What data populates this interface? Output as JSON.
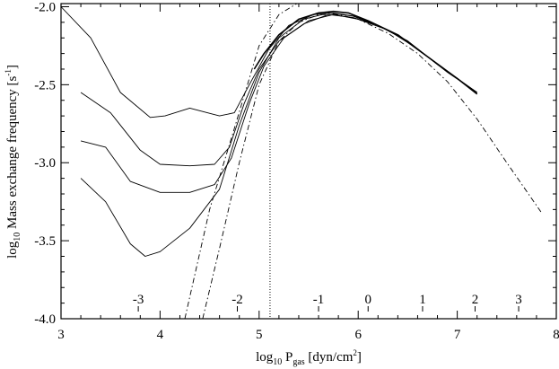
{
  "chart_data": {
    "type": "line",
    "xlabel": "log10 Pgas [dyn/cm2]",
    "ylabel": "log10 Mass exchange frequency [s-1]",
    "xlabel_parts": {
      "pre": "log",
      "pre_sub": "10",
      "mid": " P",
      "mid_sub": "gas",
      "post": " [dyn/cm",
      "post_sup": "2",
      "end": "]"
    },
    "ylabel_parts": {
      "pre": "log",
      "pre_sub": "10",
      "mid": " Mass exchange frequency [s",
      "mid_sup": "-1",
      "end": "]"
    },
    "xlim": [
      3,
      8
    ],
    "ylim": [
      -4.0,
      -1.98
    ],
    "x_ticks": [
      3,
      4,
      5,
      6,
      7,
      8
    ],
    "x_tick_labels": [
      "3",
      "4",
      "5",
      "6",
      "7",
      "8"
    ],
    "y_ticks": [
      -2.0,
      -2.5,
      -3.0,
      -3.5,
      -4.0
    ],
    "y_tick_labels": [
      "-2.0",
      "-2.5",
      "-3.0",
      "-3.5",
      "-4.0"
    ],
    "vline_x": 5.11,
    "inner_axis": {
      "labels": [
        "-3",
        "-2",
        "-1",
        "0",
        "1",
        "2",
        "3"
      ],
      "x": [
        3.78,
        4.78,
        5.6,
        6.1,
        6.65,
        7.18,
        7.62
      ]
    },
    "series": [
      {
        "style": "dotted",
        "x": [
          3.0,
          3.3,
          3.6,
          3.9,
          4.05,
          4.3,
          4.6,
          4.75,
          4.9,
          5.1,
          5.3,
          5.55,
          5.75,
          5.95,
          6.2,
          6.5,
          6.8,
          7.0,
          7.2
        ],
        "y": [
          -2.0,
          -2.2,
          -2.55,
          -2.71,
          -2.7,
          -2.65,
          -2.7,
          -2.68,
          -2.5,
          -2.27,
          -2.12,
          -2.05,
          -2.04,
          -2.06,
          -2.12,
          -2.22,
          -2.37,
          -2.46,
          -2.55
        ]
      },
      {
        "style": "dotted",
        "x": [
          3.2,
          3.5,
          3.8,
          4.0,
          4.3,
          4.55,
          4.7,
          4.85,
          5.0,
          5.2,
          5.45,
          5.7,
          5.95,
          6.2,
          6.5,
          6.8,
          7.0,
          7.2
        ],
        "y": [
          -2.55,
          -2.68,
          -2.92,
          -3.01,
          -3.02,
          -3.01,
          -2.9,
          -2.62,
          -2.4,
          -2.22,
          -2.11,
          -2.05,
          -2.07,
          -2.12,
          -2.22,
          -2.37,
          -2.46,
          -2.55
        ]
      },
      {
        "style": "dotted",
        "x": [
          3.2,
          3.45,
          3.7,
          4.0,
          4.3,
          4.55,
          4.72,
          4.9,
          5.05,
          5.25,
          5.5,
          5.75,
          6.0,
          6.3,
          6.6,
          6.9,
          7.2
        ],
        "y": [
          -2.86,
          -2.9,
          -3.12,
          -3.19,
          -3.19,
          -3.14,
          -2.97,
          -2.62,
          -2.38,
          -2.2,
          -2.09,
          -2.05,
          -2.08,
          -2.15,
          -2.27,
          -2.42,
          -2.55
        ]
      },
      {
        "style": "dotted",
        "x": [
          3.2,
          3.45,
          3.7,
          3.85,
          4.0,
          4.3,
          4.6,
          4.8,
          5.0,
          5.2,
          5.45,
          5.7,
          5.95,
          6.2,
          6.5,
          6.8,
          7.0,
          7.2
        ],
        "y": [
          -3.1,
          -3.25,
          -3.52,
          -3.6,
          -3.57,
          -3.42,
          -3.17,
          -2.76,
          -2.42,
          -2.2,
          -2.08,
          -2.04,
          -2.06,
          -2.12,
          -2.22,
          -2.37,
          -2.46,
          -2.56
        ]
      },
      {
        "style": "solid",
        "x": [
          4.95,
          5.05,
          5.2,
          5.4,
          5.6,
          5.75,
          5.9,
          6.1,
          6.4,
          6.7,
          7.0,
          7.2
        ],
        "y": [
          -2.4,
          -2.3,
          -2.18,
          -2.08,
          -2.04,
          -2.03,
          -2.04,
          -2.09,
          -2.18,
          -2.32,
          -2.46,
          -2.56
        ]
      },
      {
        "style": "dashdot",
        "x": [
          4.25,
          4.5,
          4.75,
          5.0,
          5.2,
          5.38
        ],
        "y": [
          -4.0,
          -3.3,
          -2.78,
          -2.25,
          -2.05,
          -1.98
        ]
      },
      {
        "style": "dashdot",
        "x": [
          4.43,
          4.6,
          4.8,
          5.0,
          5.2,
          5.4,
          5.6,
          5.8,
          6.0,
          6.3,
          6.6,
          6.9,
          7.2,
          7.5,
          7.85
        ],
        "y": [
          -4.0,
          -3.55,
          -3.0,
          -2.5,
          -2.22,
          -2.1,
          -2.05,
          -2.05,
          -2.08,
          -2.17,
          -2.3,
          -2.48,
          -2.72,
          -3.0,
          -3.32
        ]
      }
    ]
  }
}
